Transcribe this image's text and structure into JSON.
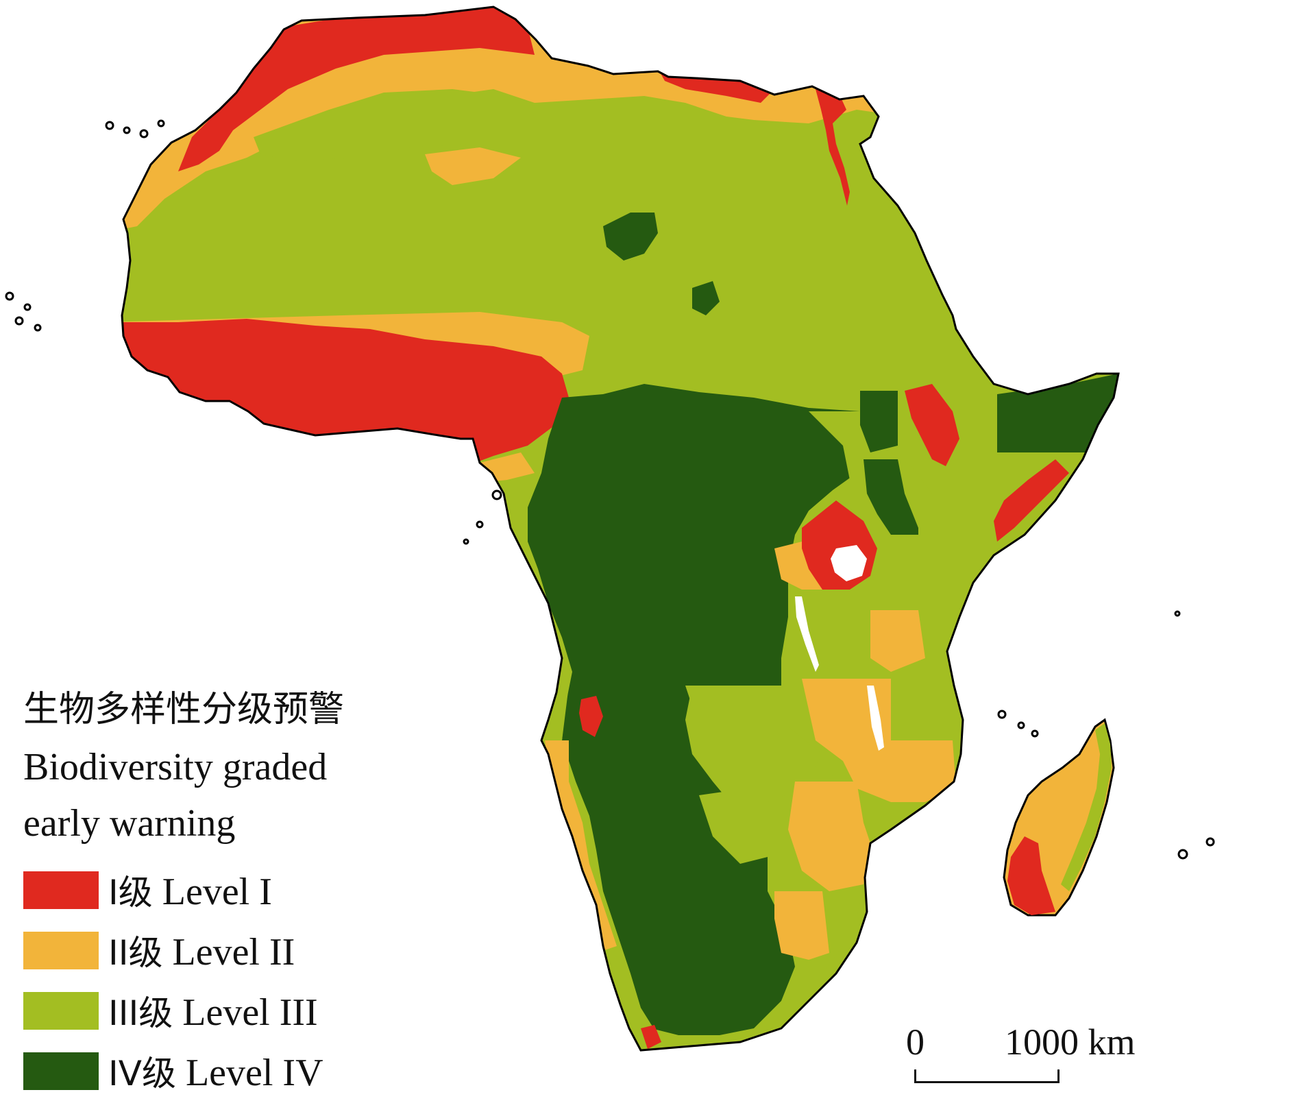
{
  "legend": {
    "title_zh": "生物多样性分级预警",
    "title_en_line1": "Biodiversity graded",
    "title_en_line2": "early warning",
    "items": [
      {
        "level_zh": "I级",
        "level_en": "Level I",
        "color": "#e0291f"
      },
      {
        "level_zh": "II级",
        "level_en": "Level II",
        "color": "#f2b43a"
      },
      {
        "level_zh": "III级",
        "level_en": "Level III",
        "color": "#a3be22"
      },
      {
        "level_zh": "IV级",
        "level_en": "Level IV",
        "color": "#255a11"
      }
    ]
  },
  "scale_bar": {
    "start_label": "0",
    "end_label": "1000 km"
  },
  "colors": {
    "outline": "#000000",
    "lake": "#ffffff",
    "background": "#ffffff"
  }
}
